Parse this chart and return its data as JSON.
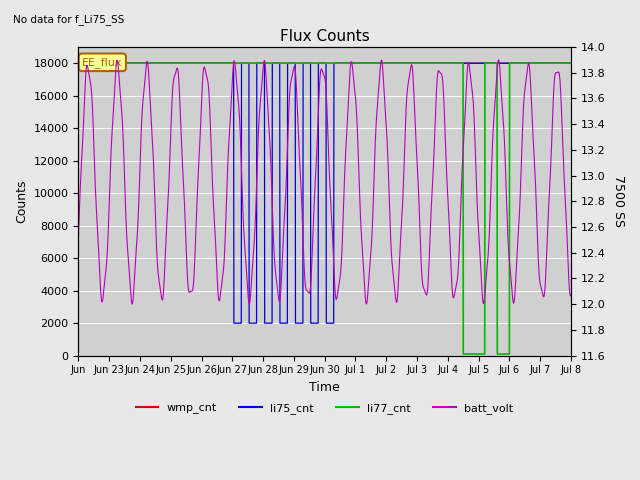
{
  "title": "Flux Counts",
  "subtitle": "No data for f_Li75_SS",
  "xlabel": "Time",
  "ylabel_left": "Counts",
  "ylabel_right": "7500 SS",
  "left_ylim": [
    0,
    19000
  ],
  "right_ylim": [
    11.6,
    14.0
  ],
  "bg_color": "#e8e8e8",
  "plot_bg_color": "#d0d0d0",
  "legend_colors": [
    "#dd0000",
    "#0000dd",
    "#00bb00",
    "#bb00bb"
  ],
  "legend_entries": [
    "wmp_cnt",
    "li75_cnt",
    "li77_cnt",
    "batt_volt"
  ],
  "annotation_text": "EE_flux",
  "annotation_fg": "#aa6600",
  "annotation_bg": "#ffff99",
  "tick_labels": [
    "Jun",
    "Jun 23",
    "Jun 24",
    "Jun 25",
    "Jun 26",
    "Jun 27",
    "Jun 28",
    "Jun 29",
    "Jun 30",
    "Jul 1",
    "Jul 2",
    "Jul 3",
    "Jul 4",
    "Jul 5",
    "Jul 6",
    "Jul 7",
    "Jul 8"
  ],
  "tick_positions": [
    0,
    1,
    2,
    3,
    4,
    5,
    6,
    7,
    8,
    9,
    10,
    11,
    12,
    13,
    14,
    15,
    16
  ],
  "yticks_left": [
    0,
    2000,
    4000,
    6000,
    8000,
    10000,
    12000,
    14000,
    16000,
    18000
  ],
  "yticks_right": [
    11.6,
    11.8,
    12.0,
    12.2,
    12.4,
    12.6,
    12.8,
    13.0,
    13.2,
    13.4,
    13.6,
    13.8,
    14.0
  ]
}
